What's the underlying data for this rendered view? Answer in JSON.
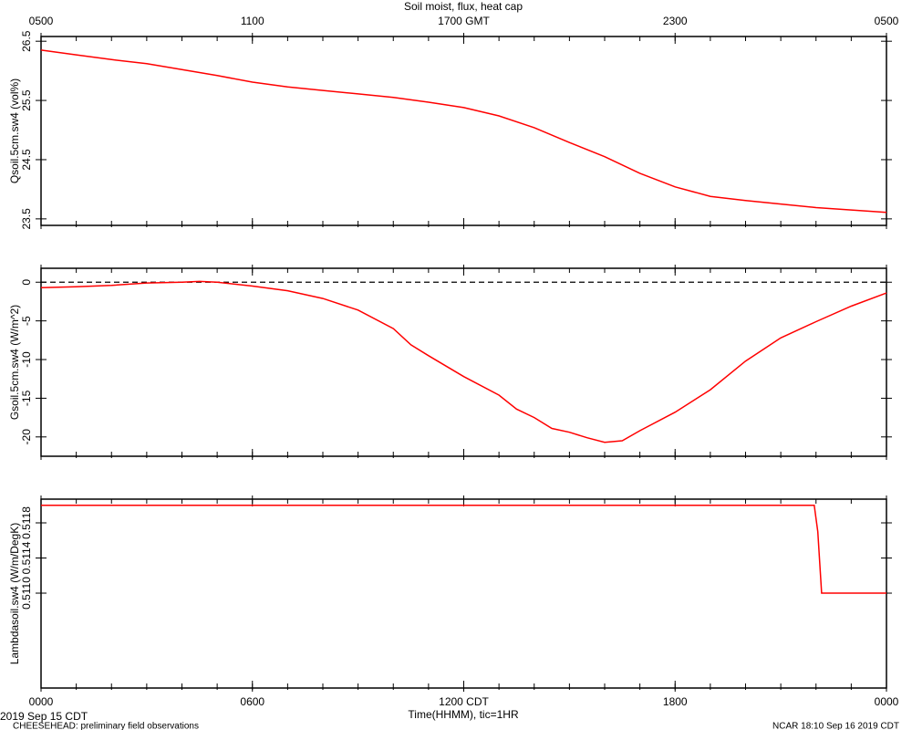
{
  "title": "Soil moist, flux, heat cap",
  "notes": {
    "date": "2019 Sep 15 CDT",
    "project": "CHEESEHEAD: preliminary field observations",
    "stamp": "NCAR 18:10 Sep 16 2019 CDT"
  },
  "chart_data": [
    {
      "type": "line",
      "ylabel": "Qsoil.5cm.sw4 (vol%)",
      "color": "#ff0000",
      "xlim": [
        0,
        24
      ],
      "ylim": [
        23.39,
        26.58
      ],
      "yticks": [
        23.5,
        24.5,
        25.5,
        26.5
      ],
      "x2ticks": [
        {
          "value": 0,
          "label": "0500"
        },
        {
          "value": 6,
          "label": "1100"
        },
        {
          "value": 12,
          "label": "1700 GMT"
        },
        {
          "value": 18,
          "label": "2300"
        },
        {
          "value": 24,
          "label": "0500"
        }
      ],
      "x": [
        0,
        1,
        2,
        3,
        4,
        5,
        6,
        7,
        8,
        9,
        10,
        11,
        12,
        13,
        14,
        15,
        16,
        17,
        18,
        19,
        20,
        21,
        22,
        23,
        24
      ],
      "values": [
        26.35,
        26.27,
        26.19,
        26.12,
        26.02,
        25.92,
        25.81,
        25.73,
        25.67,
        25.61,
        25.55,
        25.47,
        25.38,
        25.24,
        25.04,
        24.79,
        24.55,
        24.27,
        24.04,
        23.88,
        23.81,
        23.75,
        23.69,
        23.65,
        23.61
      ]
    },
    {
      "type": "line",
      "ylabel": "Gsoil.5cm.sw4 (W/m^2)",
      "color": "#ff0000",
      "hline": 0,
      "xlim": [
        0,
        24
      ],
      "ylim": [
        -22.5,
        1.8
      ],
      "yticks": [
        -20,
        -15,
        -10,
        -5,
        0
      ],
      "x": [
        0,
        1,
        2,
        3,
        4,
        4.5,
        5,
        6,
        7,
        8,
        9,
        10,
        10.5,
        11,
        12,
        13,
        13.5,
        14,
        14.5,
        15,
        15.5,
        16,
        16.5,
        17,
        18,
        19,
        20,
        21,
        22,
        23,
        24
      ],
      "values": [
        -0.7,
        -0.6,
        -0.4,
        -0.1,
        0,
        0.1,
        0,
        -0.5,
        -1.1,
        -2.1,
        -3.6,
        -6.0,
        -8.1,
        -9.5,
        -12.2,
        -14.6,
        -16.4,
        -17.5,
        -18.9,
        -19.4,
        -20.1,
        -20.7,
        -20.5,
        -19.2,
        -16.8,
        -13.9,
        -10.2,
        -7.2,
        -5.1,
        -3.1,
        -1.4
      ]
    },
    {
      "type": "line",
      "ylabel": "Lambdasoil.sw4 (W/m/DegK)",
      "color": "#ff0000",
      "xlabel": "Time(HHMM), tic=1HR",
      "xminor": 1,
      "xlim": [
        0,
        24
      ],
      "ylim": [
        0.50992,
        0.51207
      ],
      "yticks": [
        {
          "value": 0.511,
          "label": "0.5110"
        },
        0.5114,
        0.5118
      ],
      "xticks": [
        {
          "value": 0,
          "label": "0000"
        },
        {
          "value": 6,
          "label": "0600"
        },
        {
          "value": 12,
          "label": "1200 CDT"
        },
        {
          "value": 18,
          "label": "1800"
        },
        {
          "value": 24,
          "label": "0000"
        }
      ],
      "x": [
        0,
        21.95,
        22.05,
        22.16,
        24
      ],
      "values": [
        0.512,
        0.512,
        0.5117,
        0.511,
        0.511
      ]
    }
  ]
}
